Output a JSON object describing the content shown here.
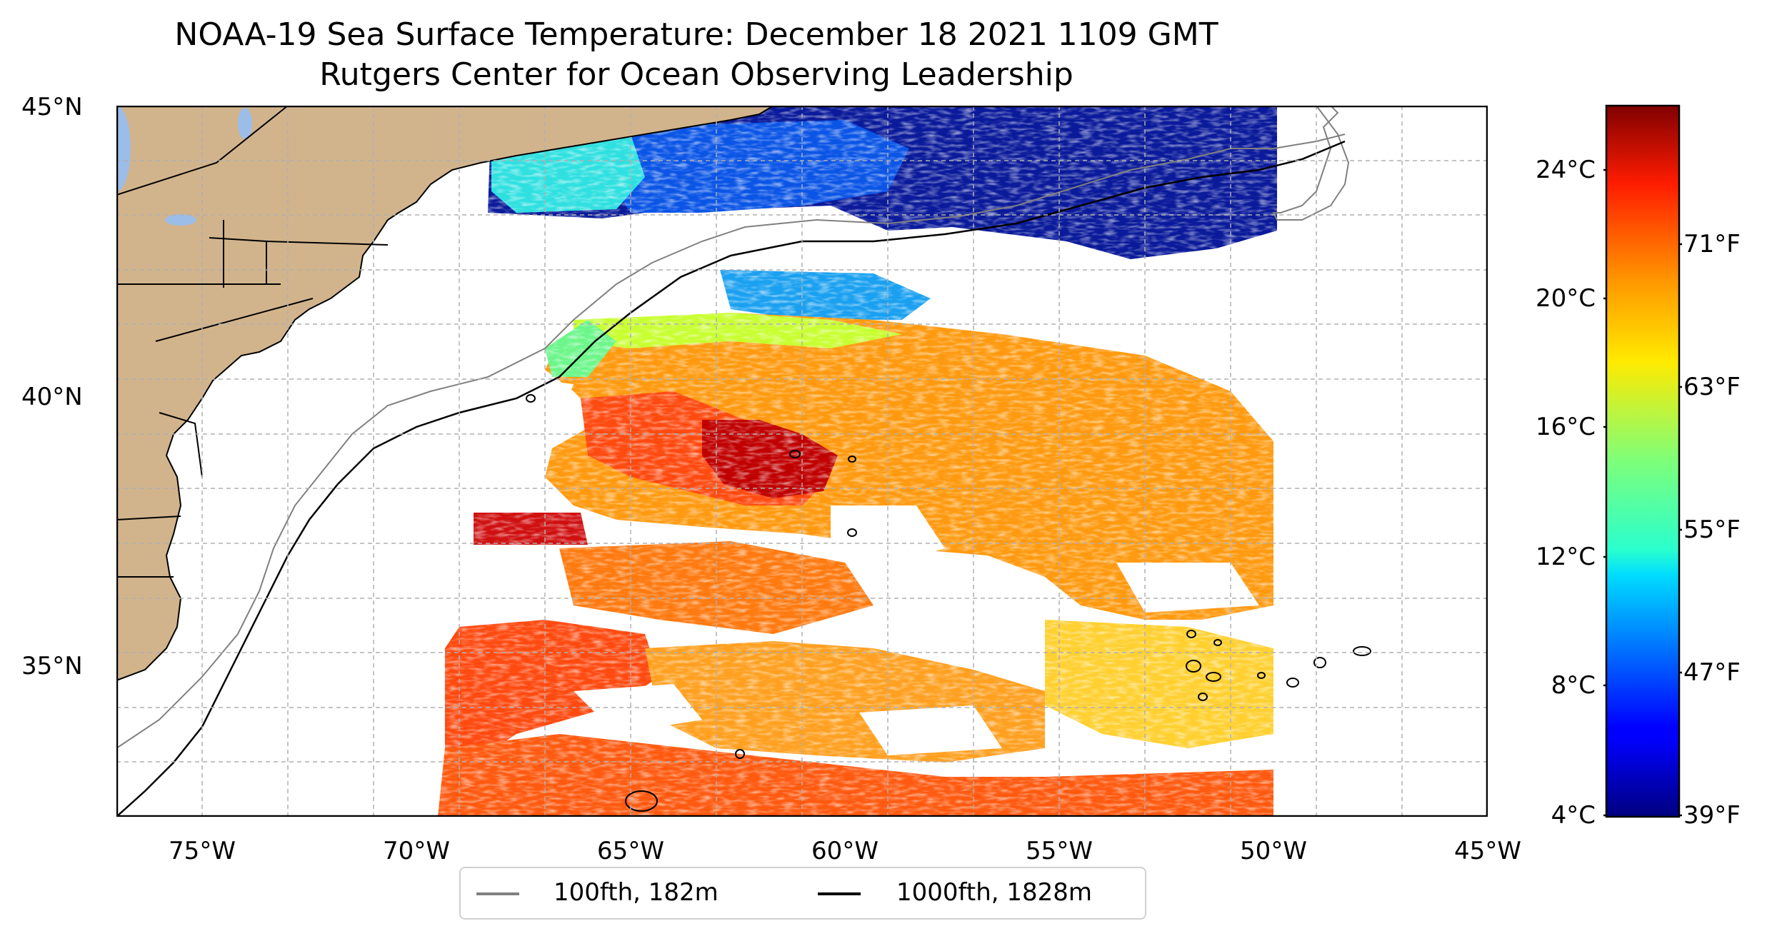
{
  "title": {
    "line1": "NOAA-19 Sea Surface Temperature: December 18 2021 1109 GMT",
    "line2": "Rutgers Center for Ocean Observing Leadership"
  },
  "map": {
    "lon_ticks": [
      "75°W",
      "70°W",
      "65°W",
      "60°W",
      "55°W",
      "50°W",
      "45°W"
    ],
    "lat_ticks": [
      "45°N",
      "40°N",
      "35°N"
    ],
    "extent": {
      "lon": [
        -77,
        -45
      ],
      "lat": [
        32,
        45
      ]
    },
    "land_color": "#d2b48c",
    "lake_color": "#9bbde8",
    "grid": true
  },
  "colorbar": {
    "colormap": "jet",
    "celsius_ticks": [
      "24°C",
      "20°C",
      "16°C",
      "12°C",
      "8°C",
      "4°C"
    ],
    "fahrenheit_ticks": [
      "71°F",
      "63°F",
      "55°F",
      "47°F",
      "39°F"
    ],
    "range_c": [
      4,
      26
    ]
  },
  "legend": {
    "items": [
      {
        "label": "100fth, 182m",
        "color": "#808080"
      },
      {
        "label": "1000fth, 1828m",
        "color": "#000000"
      }
    ]
  }
}
